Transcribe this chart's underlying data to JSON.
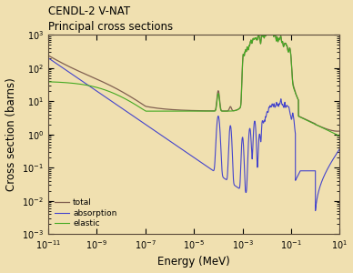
{
  "title_line1": "CENDL-2 V-NAT",
  "title_line2": "Principal cross sections",
  "xlabel": "Energy (MeV)",
  "ylabel": "Cross section (barns)",
  "background_color": "#f0e0b0",
  "xlim_log": [
    -11,
    1
  ],
  "ylim_log": [
    -3,
    3
  ],
  "legend_labels": [
    "total",
    "absorption",
    "elastic"
  ],
  "legend_colors": [
    "#806050",
    "#4444cc",
    "#44aa22"
  ],
  "title_fontsize": 8.5,
  "axis_label_fontsize": 8.5,
  "tick_fontsize": 7
}
